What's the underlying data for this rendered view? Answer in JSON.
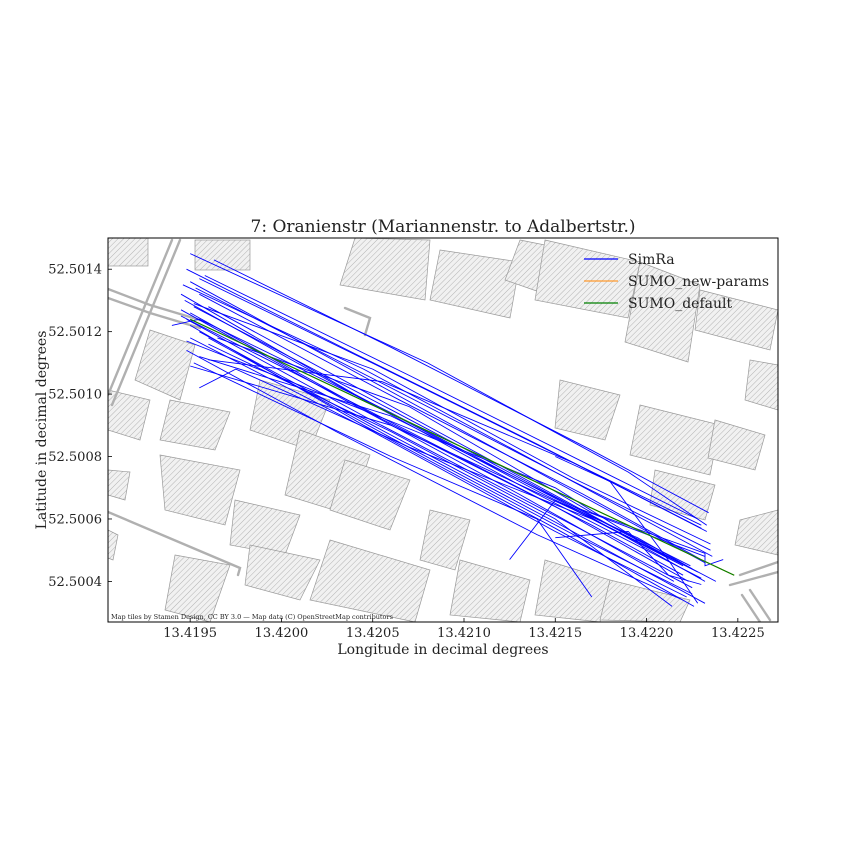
{
  "chart_data": {
    "type": "line",
    "title": "7: Oranienstr (Mariannenstr. to Adalbertstr.)",
    "xlabel": "Longitude in decimal degrees",
    "ylabel": "Latitude in decimal degrees",
    "xlim": [
      13.41905,
      13.42272
    ],
    "ylim": [
      52.50027,
      52.5015
    ],
    "xticks": [
      13.4195,
      13.42,
      13.4205,
      13.421,
      13.4215,
      13.422,
      13.4225
    ],
    "xtick_labels": [
      "13.4195",
      "13.4200",
      "13.4205",
      "13.4210",
      "13.4215",
      "13.4220",
      "13.4225"
    ],
    "yticks": [
      52.5004,
      52.5006,
      52.5008,
      52.501,
      52.5012,
      52.5014
    ],
    "ytick_labels": [
      "52.5004",
      "52.5006",
      "52.5008",
      "52.5010",
      "52.5012",
      "52.5014"
    ],
    "legend_position": "top-right",
    "attribution": "Map tiles by Stamen Design, CC BY 3.0 — Map data (C) OpenStreetMap contributors",
    "colors": {
      "simra": "#0000ff",
      "sumo_new": "#ff9a2e",
      "sumo_default": "#008000",
      "buildings": "#9a9a9a",
      "roads": "#a8a8a8"
    },
    "series": [
      {
        "name": "SimRa",
        "color": "#0000ff",
        "tracks": [
          [
            [
              13.4195,
              52.50136
            ],
            [
              13.4205,
              52.50104
            ],
            [
              13.4215,
              52.50072
            ],
            [
              13.42232,
              52.50046
            ]
          ],
          [
            [
              13.41945,
              52.50132
            ],
            [
              13.4204,
              52.501
            ],
            [
              13.4214,
              52.50069
            ],
            [
              13.42228,
              52.50043
            ]
          ],
          [
            [
              13.41952,
              52.50128
            ],
            [
              13.4206,
              52.50095
            ],
            [
              13.4216,
              52.50064
            ],
            [
              13.42238,
              52.5004
            ]
          ],
          [
            [
              13.41948,
              52.50124
            ],
            [
              13.42045,
              52.50093
            ],
            [
              13.4215,
              52.50061
            ],
            [
              13.42225,
              52.50038
            ]
          ],
          [
            [
              13.41955,
              52.5012
            ],
            [
              13.4205,
              52.5009
            ],
            [
              13.4215,
              52.50059
            ],
            [
              13.42232,
              52.50033
            ]
          ],
          [
            [
              13.4196,
              52.50118
            ],
            [
              13.4206,
              52.50086
            ],
            [
              13.4216,
              52.50055
            ],
            [
              13.42225,
              52.50036
            ]
          ],
          [
            [
              13.41947,
              52.5013
            ],
            [
              13.4203,
              52.50103
            ],
            [
              13.4213,
              52.50071
            ],
            [
              13.4223,
              52.50041
            ]
          ],
          [
            [
              13.4195,
              52.50126
            ],
            [
              13.42055,
              52.50092
            ],
            [
              13.4217,
              52.50058
            ],
            [
              13.4222,
              52.50042
            ]
          ],
          [
            [
              13.41948,
              52.5014
            ],
            [
              13.4204,
              52.50113
            ],
            [
              13.4214,
              52.50084
            ],
            [
              13.4223,
              52.50057
            ]
          ],
          [
            [
              13.41953,
              52.50134
            ],
            [
              13.4205,
              52.50105
            ],
            [
              13.4216,
              52.50072
            ],
            [
              13.42235,
              52.5005
            ]
          ],
          [
            [
              13.41958,
              52.50138
            ],
            [
              13.4207,
              52.50106
            ],
            [
              13.4218,
              52.50074
            ],
            [
              13.42228,
              52.5006
            ]
          ],
          [
            [
              13.4195,
              52.50122
            ],
            [
              13.42045,
              52.5009
            ],
            [
              13.4215,
              52.50057
            ],
            [
              13.42226,
              52.50032
            ]
          ],
          [
            [
              13.41945,
              52.50127
            ],
            [
              13.42035,
              52.50098
            ],
            [
              13.4213,
              52.50068
            ],
            [
              13.42215,
              52.5004
            ]
          ],
          [
            [
              13.41955,
              52.50132
            ],
            [
              13.42065,
              52.50098
            ],
            [
              13.42165,
              52.50068
            ],
            [
              13.4223,
              52.50047
            ]
          ],
          [
            [
              13.4196,
              52.50128
            ],
            [
              13.4207,
              52.50093
            ],
            [
              13.4218,
              52.50058
            ],
            [
              13.42224,
              52.50045
            ]
          ],
          [
            [
              13.4195,
              52.50118
            ],
            [
              13.4205,
              52.50088
            ],
            [
              13.4215,
              52.50056
            ],
            [
              13.42222,
              52.50035
            ]
          ],
          [
            [
              13.4194,
              52.50122
            ],
            [
              13.41955,
              52.50124
            ],
            [
              13.4206,
              52.50094
            ],
            [
              13.42165,
              52.50062
            ],
            [
              13.42232,
              52.5004
            ]
          ],
          [
            [
              13.41945,
              52.50125
            ],
            [
              13.4204,
              52.50097
            ],
            [
              13.4215,
              52.50064
            ],
            [
              13.42223,
              52.5004
            ]
          ],
          [
            [
              13.4195,
              52.50145
            ],
            [
              13.4208,
              52.5011
            ],
            [
              13.4219,
              52.50075
            ],
            [
              13.42233,
              52.50058
            ]
          ],
          [
            [
              13.41952,
              52.5011
            ],
            [
              13.4206,
              52.5008
            ],
            [
              13.4214,
              52.5006
            ],
            [
              13.4217,
              52.50035
            ]
          ],
          [
            [
              13.41955,
              52.50112
            ],
            [
              13.4206,
              52.50093
            ],
            [
              13.4216,
              52.50064
            ],
            [
              13.42232,
              52.50048
            ]
          ],
          [
            [
              13.41948,
              52.50117
            ],
            [
              13.4204,
              52.50096
            ],
            [
              13.4215,
              52.5007
            ],
            [
              13.4221,
              52.50048
            ]
          ],
          [
            [
              13.41955,
              52.50102
            ],
            [
              13.41975,
              52.50108
            ],
            [
              13.4207,
              52.50083
            ],
            [
              13.4217,
              52.5006
            ],
            [
              13.4222,
              52.50045
            ]
          ],
          [
            [
              13.4196,
              52.50111
            ],
            [
              13.42055,
              52.50104
            ],
            [
              13.4216,
              52.50078
            ],
            [
              13.4223,
              52.50058
            ]
          ],
          [
            [
              13.41952,
              52.50129
            ],
            [
              13.4205,
              52.50108
            ],
            [
              13.4216,
              52.50073
            ],
            [
              13.42235,
              52.50052
            ]
          ],
          [
            [
              13.41963,
              52.50143
            ],
            [
              13.4206,
              52.50115
            ],
            [
              13.4217,
              52.50082
            ],
            [
              13.42234,
              52.50062
            ]
          ],
          [
            [
              13.41948,
              52.50114
            ],
            [
              13.4203,
              52.50088
            ],
            [
              13.4214,
              52.50055
            ],
            [
              13.4222,
              52.50034
            ]
          ],
          [
            [
              13.41955,
              52.50137
            ],
            [
              13.4206,
              52.50107
            ],
            [
              13.4216,
              52.50078
            ],
            [
              13.42233,
              52.50056
            ]
          ],
          [
            [
              13.4196,
              52.50116
            ],
            [
              13.4206,
              52.50088
            ],
            [
              13.4215,
              52.5006
            ],
            [
              13.42214,
              52.50032
            ]
          ],
          [
            [
              13.4195,
              52.50109
            ],
            [
              13.4206,
              52.5009
            ],
            [
              13.4216,
              52.50063
            ],
            [
              13.42225,
              52.50044
            ]
          ],
          [
            [
              13.4215,
              52.50054
            ],
            [
              13.4219,
              52.50056
            ],
            [
              13.42212,
              52.50042
            ],
            [
              13.4223,
              52.50039
            ]
          ],
          [
            [
              13.42125,
              52.50047
            ],
            [
              13.4215,
              52.50066
            ],
            [
              13.42195,
              52.50054
            ],
            [
              13.42225,
              52.50044
            ]
          ],
          [
            [
              13.4215,
              52.5008
            ],
            [
              13.4218,
              52.50072
            ],
            [
              13.42213,
              52.50046
            ],
            [
              13.42228,
              52.50033
            ]
          ],
          [
            [
              13.41965,
              52.50118
            ],
            [
              13.4207,
              52.50096
            ],
            [
              13.4217,
              52.50062
            ],
            [
              13.42232,
              52.50049
            ],
            [
              13.42232,
              52.50045
            ],
            [
              13.42242,
              52.50047
            ]
          ],
          [
            [
              13.41946,
              52.50135
            ],
            [
              13.42045,
              52.50108
            ],
            [
              13.4215,
              52.50075
            ],
            [
              13.42236,
              52.50048
            ]
          ]
        ]
      },
      {
        "name": "SUMO_new-params",
        "color": "#ff9a2e",
        "tracks": [
          [
            [
              13.4195,
              52.50124
            ],
            [
              13.42248,
              52.50042
            ]
          ]
        ]
      },
      {
        "name": "SUMO_default",
        "color": "#008000",
        "tracks": [
          [
            [
              13.4195,
              52.50124
            ],
            [
              13.42248,
              52.50042
            ]
          ]
        ]
      }
    ]
  }
}
